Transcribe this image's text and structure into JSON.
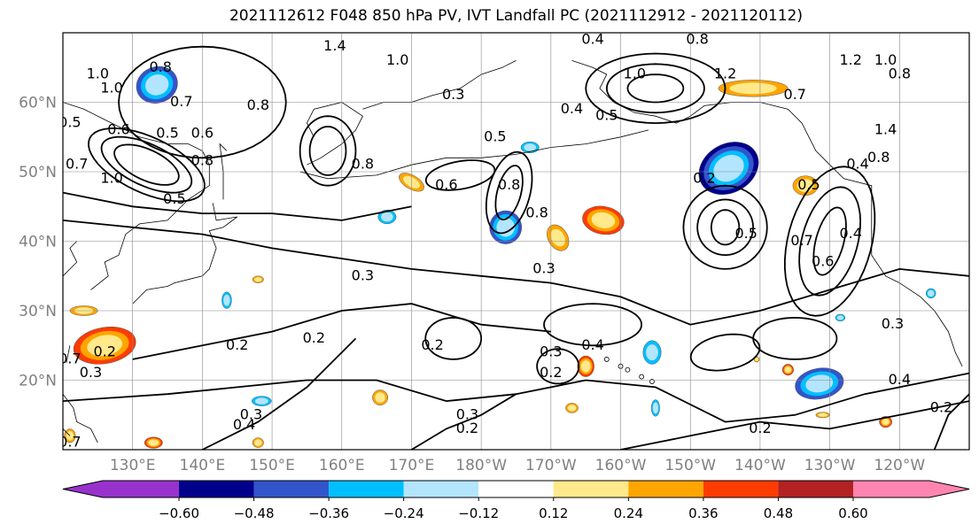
{
  "title": "2021112612 F048 850 hPa PV, IVT Landfall PC (2021112912 - 2021120112)",
  "lat_labels": [
    "60°N",
    "50°N",
    "40°N",
    "30°N",
    "20°N"
  ],
  "lon_labels": [
    "130°E",
    "140°E",
    "150°E",
    "160°E",
    "170°E",
    "180°W",
    "170°W",
    "160°W",
    "150°W",
    "140°W",
    "130°W",
    "120°W"
  ],
  "contour_labels": [
    {
      "text": "0.8",
      "lon": 134,
      "lat": 65
    },
    {
      "text": "1.0",
      "lon": 127,
      "lat": 62
    },
    {
      "text": "1.0",
      "lon": 125,
      "lat": 64
    },
    {
      "text": "0.7",
      "lon": 137,
      "lat": 60
    },
    {
      "text": "0.6",
      "lon": 128,
      "lat": 56
    },
    {
      "text": "0.5",
      "lon": 135,
      "lat": 55.5
    },
    {
      "text": "0.6",
      "lon": 140,
      "lat": 55.5
    },
    {
      "text": "0.8",
      "lon": 140,
      "lat": 51.5
    },
    {
      "text": "1.0",
      "lon": 127,
      "lat": 49
    },
    {
      "text": "0.7",
      "lon": 122,
      "lat": 51
    },
    {
      "text": "0.5",
      "lon": 121,
      "lat": 57
    },
    {
      "text": "0.5",
      "lon": 136,
      "lat": 46
    },
    {
      "text": "0.8",
      "lon": 148,
      "lat": 59.5
    },
    {
      "text": "1.4",
      "lon": 159,
      "lat": 68
    },
    {
      "text": "1.0",
      "lon": 168,
      "lat": 66
    },
    {
      "text": "0.8",
      "lon": 163,
      "lat": 51
    },
    {
      "text": "0.3",
      "lon": 176,
      "lat": 61
    },
    {
      "text": "0.5",
      "lon": 182,
      "lat": 55
    },
    {
      "text": "0.6",
      "lon": 175,
      "lat": 48
    },
    {
      "text": "0.8",
      "lon": 184,
      "lat": 48
    },
    {
      "text": "0.8",
      "lon": 188,
      "lat": 44
    },
    {
      "text": "0.4",
      "lon": 196,
      "lat": 69
    },
    {
      "text": "0.4",
      "lon": 193,
      "lat": 59
    },
    {
      "text": "1.0",
      "lon": 202,
      "lat": 64
    },
    {
      "text": "0.5",
      "lon": 198,
      "lat": 58
    },
    {
      "text": "0.8",
      "lon": 211,
      "lat": 69
    },
    {
      "text": "1.2",
      "lon": 215,
      "lat": 64
    },
    {
      "text": "0.7",
      "lon": 225,
      "lat": 61
    },
    {
      "text": "0.2",
      "lon": 212,
      "lat": 49
    },
    {
      "text": "0.5",
      "lon": 218,
      "lat": 41
    },
    {
      "text": "0.5",
      "lon": 227,
      "lat": 48
    },
    {
      "text": "0.7",
      "lon": 226,
      "lat": 40
    },
    {
      "text": "0.6",
      "lon": 229,
      "lat": 37
    },
    {
      "text": "0.4",
      "lon": 234,
      "lat": 51
    },
    {
      "text": "0.4",
      "lon": 233,
      "lat": 41
    },
    {
      "text": "1.4",
      "lon": 238,
      "lat": 56
    },
    {
      "text": "1.0",
      "lon": 238,
      "lat": 66
    },
    {
      "text": "0.8",
      "lon": 240,
      "lat": 64
    },
    {
      "text": "1.2",
      "lon": 233,
      "lat": 66
    },
    {
      "text": "0.8",
      "lon": 237,
      "lat": 52
    },
    {
      "text": "0.3",
      "lon": 163,
      "lat": 35
    },
    {
      "text": "0.3",
      "lon": 189,
      "lat": 36
    },
    {
      "text": "0.2",
      "lon": 145,
      "lat": 25
    },
    {
      "text": "0.2",
      "lon": 156,
      "lat": 26
    },
    {
      "text": "0.2",
      "lon": 173,
      "lat": 25
    },
    {
      "text": "0.3",
      "lon": 190,
      "lat": 24
    },
    {
      "text": "0.4",
      "lon": 196,
      "lat": 25
    },
    {
      "text": "0.2",
      "lon": 190,
      "lat": 21
    },
    {
      "text": "0.3",
      "lon": 147,
      "lat": 15
    },
    {
      "text": "0.4",
      "lon": 146,
      "lat": 13.5
    },
    {
      "text": "0.3",
      "lon": 178,
      "lat": 15
    },
    {
      "text": "0.2",
      "lon": 178,
      "lat": 13
    },
    {
      "text": "0.2",
      "lon": 220,
      "lat": 13
    },
    {
      "text": "0.4",
      "lon": 240,
      "lat": 20
    },
    {
      "text": "0.3",
      "lon": 239,
      "lat": 28
    },
    {
      "text": "0.2",
      "lon": 246,
      "lat": 16
    },
    {
      "text": "0.2",
      "lon": 126,
      "lat": 24
    },
    {
      "text": "0.3",
      "lon": 124,
      "lat": 21
    },
    {
      "text": "0.7",
      "lon": 121,
      "lat": 23
    },
    {
      "text": "0.7",
      "lon": 121,
      "lat": 11
    }
  ],
  "colorbar": {
    "tick_labels": [
      "−0.60",
      "−0.48",
      "−0.36",
      "−0.24",
      "−0.12",
      "0.12",
      "0.24",
      "0.36",
      "0.48",
      "0.60"
    ],
    "colors": [
      "#9932cc",
      "#00008b",
      "#3355cc",
      "#00bfff",
      "#b3e5ff",
      "#ffffff",
      "#ffe98a",
      "#ffa500",
      "#ff3c00",
      "#b22222",
      "#ff85b0"
    ]
  }
}
